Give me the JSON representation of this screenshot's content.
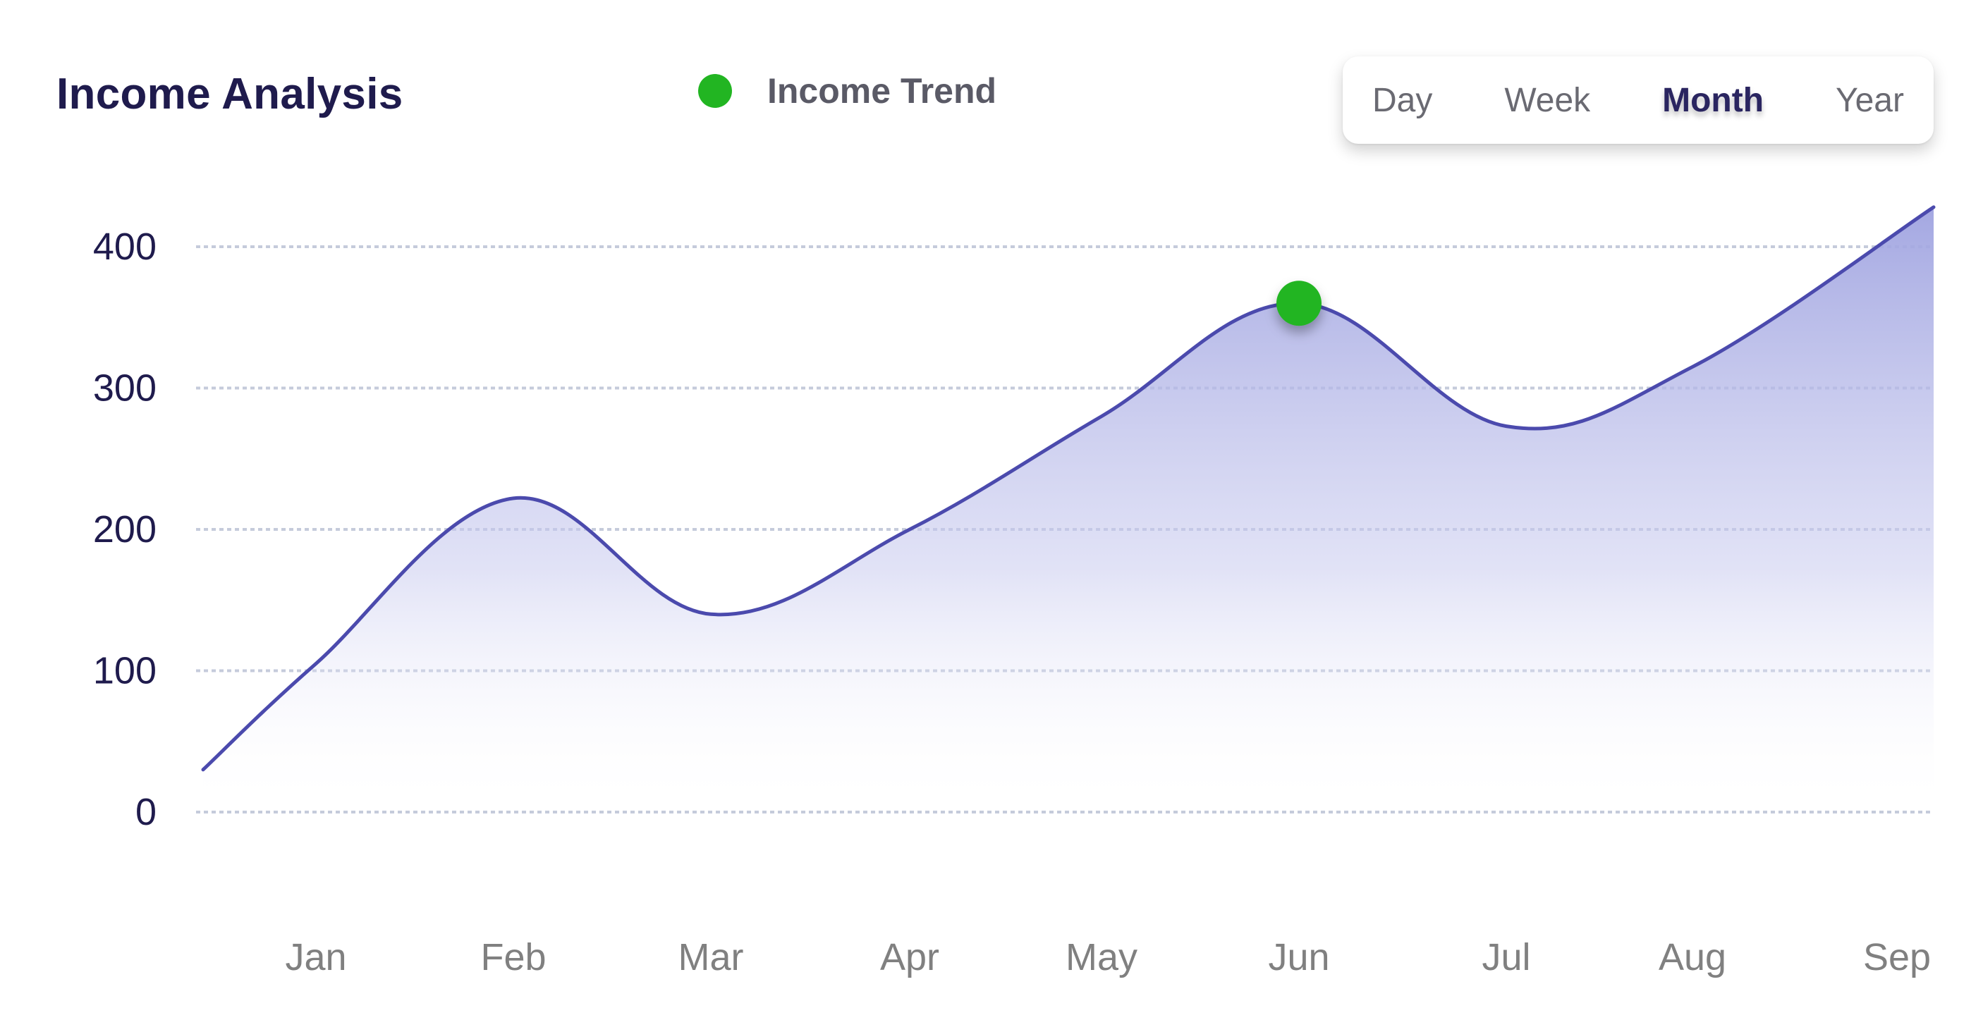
{
  "header": {
    "title": "Income Analysis",
    "legend_label": "Income Trend",
    "tabs": [
      {
        "label": "Day",
        "active": false
      },
      {
        "label": "Week",
        "active": false
      },
      {
        "label": "Month",
        "active": true
      },
      {
        "label": "Year",
        "active": false
      }
    ]
  },
  "colors": {
    "line": "#4b4aad",
    "area_top": "#9fa3e0",
    "marker": "#22b522",
    "grid": "#c5cbdb",
    "tick_y": "#1f1b4d",
    "tick_x": "#808080"
  },
  "chart_data": {
    "type": "area",
    "title": "Income Analysis",
    "categories": [
      "Jan",
      "Feb",
      "Mar",
      "Apr",
      "May",
      "Jun",
      "Jul",
      "Aug",
      "Sep"
    ],
    "series": [
      {
        "name": "Income Trend",
        "values": [
          105,
          222,
          140,
          200,
          280,
          360,
          273,
          315,
          428
        ],
        "start_value": 30,
        "highlight_index": 5
      }
    ],
    "yticks": [
      0,
      100,
      200,
      300,
      400
    ],
    "ylim": [
      0,
      430
    ],
    "grid": true,
    "legend": "top-center"
  }
}
